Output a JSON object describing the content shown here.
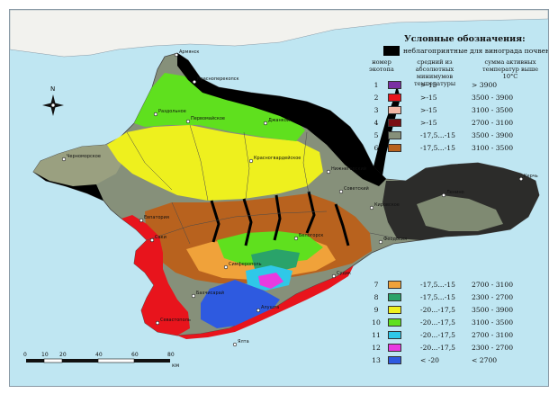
{
  "legend": {
    "title": "Условные обозначения:",
    "unfavorable": {
      "label": "неблагоприятные для винограда почвенные условия",
      "color": "#000000"
    },
    "headers": {
      "zone_no": "номер экотопа",
      "min_temp": "средний из абсолютных минимумов температуры",
      "active_sum": "сумма активных температур выше 10°С"
    },
    "zones": [
      {
        "num": "1",
        "color": "#7a2fa3",
        "tmin": ">-15",
        "sum": "> 3900"
      },
      {
        "num": "2",
        "color": "#e8141c",
        "tmin": ">-15",
        "sum": "3500 - 3900"
      },
      {
        "num": "3",
        "color": "#f3b6a4",
        "tmin": ">-15",
        "sum": "3100 - 3500"
      },
      {
        "num": "4",
        "color": "#7a0f14",
        "tmin": ">-15",
        "sum": "2700 - 3100"
      },
      {
        "num": "5",
        "color": "#86907a",
        "tmin": "-17,5...-15",
        "sum": "3500 - 3900"
      },
      {
        "num": "6",
        "color": "#b8621e",
        "tmin": "-17,5...-15",
        "sum": "3100 - 3500"
      },
      {
        "num": "7",
        "color": "#f0a23a",
        "tmin": "-17,5...-15",
        "sum": "2700 - 3100"
      },
      {
        "num": "8",
        "color": "#2aa36a",
        "tmin": "-17,5...-15",
        "sum": "2300 - 2700"
      },
      {
        "num": "9",
        "color": "#eef01e",
        "tmin": "-20...-17,5",
        "sum": "3500 - 3900"
      },
      {
        "num": "10",
        "color": "#5fe01e",
        "tmin": "-20...-17,5",
        "sum": "3100 - 3500"
      },
      {
        "num": "11",
        "color": "#2fc8e8",
        "tmin": "-20...-17,5",
        "sum": "2700 - 3100"
      },
      {
        "num": "12",
        "color": "#e83ae0",
        "tmin": "-20...-17,5",
        "sum": "2300 - 2700"
      },
      {
        "num": "13",
        "color": "#2e5ae0",
        "tmin": "< -20",
        "sum": "< 2700"
      }
    ]
  },
  "compass": {
    "north_label": "N"
  },
  "scale": {
    "ticks": [
      "0",
      "10",
      "20",
      "40",
      "60",
      "80"
    ],
    "unit": "км"
  },
  "cities": [
    {
      "name": "Армянск"
    },
    {
      "name": "Красноперекопск"
    },
    {
      "name": "Раздольное"
    },
    {
      "name": "Первомайское"
    },
    {
      "name": "Джанкой"
    },
    {
      "name": "Черноморское"
    },
    {
      "name": "Красногвардейское"
    },
    {
      "name": "Нижнегорский"
    },
    {
      "name": "Советский"
    },
    {
      "name": "Кировское"
    },
    {
      "name": "Ленино"
    },
    {
      "name": "Керчь"
    },
    {
      "name": "Евпатория"
    },
    {
      "name": "Саки"
    },
    {
      "name": "Белогорск"
    },
    {
      "name": "Феодосия"
    },
    {
      "name": "Симферополь"
    },
    {
      "name": "Бахчисарай"
    },
    {
      "name": "Севастополь"
    },
    {
      "name": "Алушта"
    },
    {
      "name": "Судак"
    },
    {
      "name": "Ялта"
    }
  ],
  "colors": {
    "sea": "#bfe6f2",
    "land_outside": "#f2f2ee",
    "border": "#4a4a4a"
  }
}
